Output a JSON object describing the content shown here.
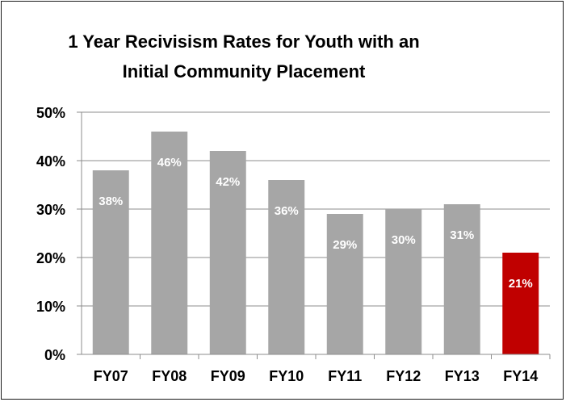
{
  "chart_data": {
    "type": "bar",
    "title_lines": [
      "1 Year Recivisism Rates for Youth with an",
      "Initial Community Placement"
    ],
    "categories": [
      "FY07",
      "FY08",
      "FY09",
      "FY10",
      "FY11",
      "FY12",
      "FY13",
      "FY14"
    ],
    "values": [
      38,
      46,
      42,
      36,
      29,
      30,
      31,
      21
    ],
    "value_labels": [
      "38%",
      "46%",
      "42%",
      "36%",
      "29%",
      "30%",
      "31%",
      "21%"
    ],
    "ylim": [
      0,
      50
    ],
    "y_ticks": [
      0,
      10,
      20,
      30,
      40,
      50
    ],
    "y_tick_labels": [
      "0%",
      "10%",
      "20%",
      "30%",
      "40%",
      "50%"
    ],
    "grid": true,
    "legend": "none",
    "colors": {
      "bar": "#a6a6a6",
      "highlight": "#c00000",
      "grid": "#8c8c8c",
      "axis": "#8c8c8c"
    },
    "highlight_index": 7
  }
}
